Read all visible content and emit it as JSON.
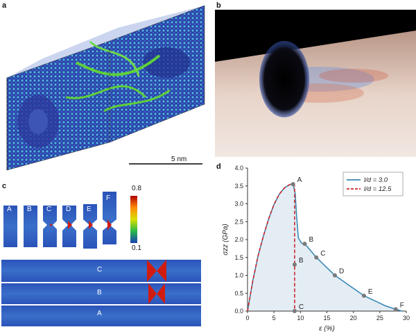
{
  "panels": {
    "a": {
      "label": "a",
      "scale_bar_text": "5 nm"
    },
    "b": {
      "label": "b"
    },
    "c": {
      "label": "c",
      "column_letters": [
        "A",
        "B",
        "C",
        "D",
        "E",
        "F"
      ],
      "colorbar_max": "0.8",
      "colorbar_min": "0.1",
      "row_letters": [
        "C",
        "B",
        "A"
      ]
    },
    "d": {
      "label": "d"
    }
  },
  "chart_data": {
    "type": "line",
    "xlabel": "ε (%)",
    "ylabel": "σzz (GPa)",
    "xlim": [
      0,
      30
    ],
    "ylim": [
      0,
      4.0
    ],
    "x_ticks": [
      "0",
      "5",
      "10",
      "15",
      "20",
      "25",
      "30"
    ],
    "y_ticks": [
      "0.0",
      "0.5",
      "1.0",
      "1.5",
      "2.0",
      "2.5",
      "3.0",
      "3.5",
      "4.0"
    ],
    "legend_position": "top-right",
    "series": [
      {
        "name": "l/d = 3.0",
        "color": "#3a8ab5",
        "style": "solid",
        "x": [
          0,
          1,
          2,
          3,
          4,
          5,
          6,
          7,
          8,
          8.6,
          9.0,
          9.3,
          9.6,
          10.2,
          11,
          13,
          16.5,
          22,
          26,
          28,
          29.2
        ],
        "y": [
          0,
          0.85,
          1.55,
          2.1,
          2.58,
          2.98,
          3.27,
          3.45,
          3.54,
          3.55,
          3.3,
          2.6,
          2.05,
          1.9,
          1.85,
          1.5,
          1.0,
          0.43,
          0.15,
          0.05,
          0
        ]
      },
      {
        "name": "l/d = 12.5",
        "color": "#c8242a",
        "style": "dashed",
        "x": [
          0,
          1,
          2,
          3,
          4,
          5,
          6,
          7,
          8,
          8.6,
          8.9,
          8.9
        ],
        "y": [
          0,
          0.85,
          1.55,
          2.1,
          2.58,
          2.98,
          3.27,
          3.45,
          3.54,
          3.55,
          3.5,
          0
        ]
      }
    ],
    "points": [
      {
        "label": "A",
        "x": 8.6,
        "y": 3.55
      },
      {
        "label": "B",
        "x": 10.8,
        "y": 1.88
      },
      {
        "label": "C",
        "x": 13.0,
        "y": 1.5
      },
      {
        "label": "D",
        "x": 16.5,
        "y": 1.0
      },
      {
        "label": "E",
        "x": 22.0,
        "y": 0.43
      },
      {
        "label": "F",
        "x": 28.0,
        "y": 0.05
      },
      {
        "label": "B",
        "x": 8.9,
        "y": 1.3
      },
      {
        "label": "C",
        "x": 8.9,
        "y": 0.0
      }
    ],
    "colors": {
      "fill_under_curve": "#dde9f0"
    }
  }
}
